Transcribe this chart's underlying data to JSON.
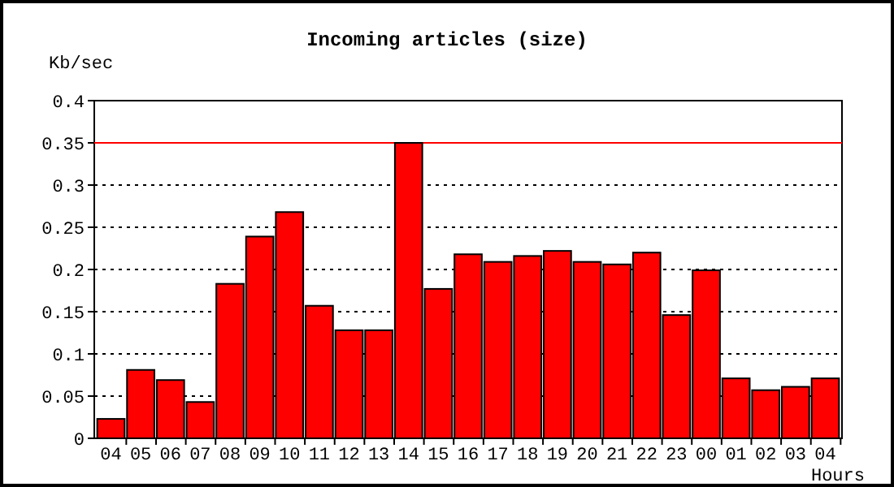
{
  "chart_data": {
    "type": "bar",
    "title": "Incoming articles (size)",
    "ylabel": "Kb/sec",
    "xlabel": "Hours",
    "categories": [
      "04",
      "05",
      "06",
      "07",
      "08",
      "09",
      "10",
      "11",
      "12",
      "13",
      "14",
      "15",
      "16",
      "17",
      "18",
      "19",
      "20",
      "21",
      "22",
      "23",
      "00",
      "01",
      "02",
      "03",
      "04"
    ],
    "values": [
      0.023,
      0.081,
      0.069,
      0.043,
      0.183,
      0.239,
      0.268,
      0.157,
      0.128,
      0.128,
      0.35,
      0.177,
      0.218,
      0.209,
      0.216,
      0.222,
      0.209,
      0.206,
      0.22,
      0.146,
      0.199,
      0.071,
      0.057,
      0.061,
      0.071
    ],
    "color": "#ff0000",
    "ylim": [
      0,
      0.4
    ],
    "yticks": [
      0,
      0.05,
      0.1,
      0.15,
      0.2,
      0.25,
      0.3,
      0.35,
      0.4
    ],
    "grid": "y",
    "line_style": "dotted",
    "ref_lines": [
      {
        "axis": "y",
        "value": 0.35,
        "color": "#ff0000"
      }
    ]
  }
}
